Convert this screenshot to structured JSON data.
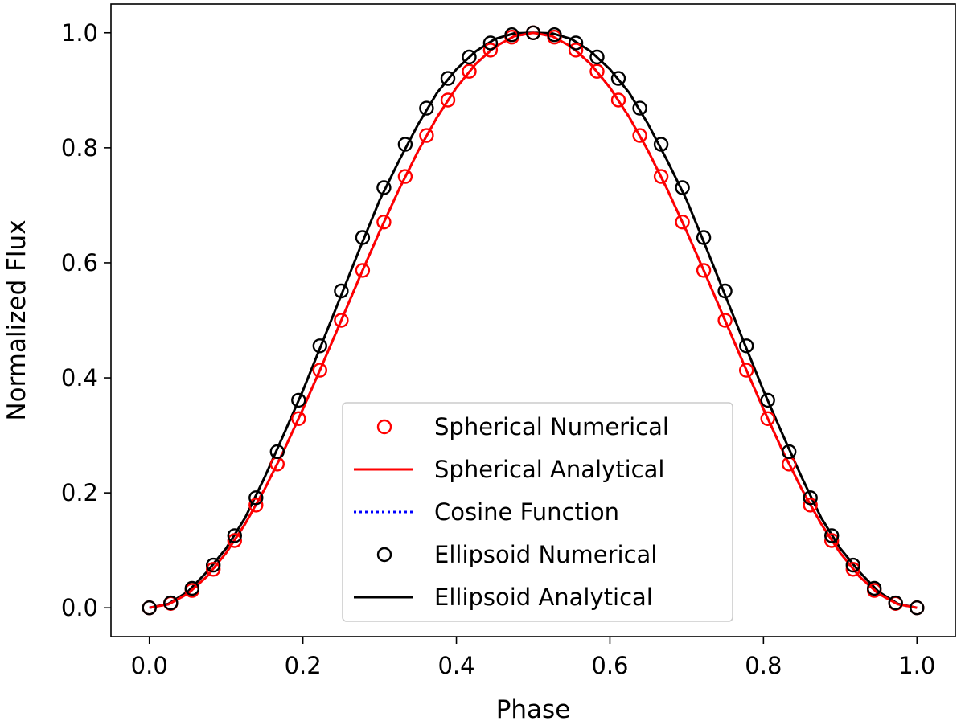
{
  "chart_data": {
    "type": "line",
    "title": "",
    "xlabel": "Phase",
    "ylabel": "Normalized Flux",
    "xlim": [
      -0.05,
      1.05
    ],
    "ylim": [
      -0.05,
      1.05
    ],
    "xticks": [
      0.0,
      0.2,
      0.4,
      0.6,
      0.8,
      1.0
    ],
    "xtick_labels": [
      "0.0",
      "0.2",
      "0.4",
      "0.6",
      "0.8",
      "1.0"
    ],
    "yticks": [
      0.0,
      0.2,
      0.4,
      0.6,
      0.8,
      1.0
    ],
    "ytick_labels": [
      "0.0",
      "0.2",
      "0.4",
      "0.6",
      "0.8",
      "1.0"
    ],
    "grid": false,
    "legend_position": "lower center",
    "point_phases": [
      0.0,
      0.0278,
      0.0556,
      0.0833,
      0.1111,
      0.1389,
      0.1667,
      0.1944,
      0.2222,
      0.25,
      0.2778,
      0.3056,
      0.3333,
      0.3611,
      0.3889,
      0.4167,
      0.4444,
      0.4722,
      0.5,
      0.5278,
      0.5556,
      0.5833,
      0.6111,
      0.6389,
      0.6667,
      0.6944,
      0.7222,
      0.75,
      0.7778,
      0.8056,
      0.8333,
      0.8611,
      0.8889,
      0.9167,
      0.9444,
      0.9722,
      1.0
    ],
    "series": [
      {
        "name": "Spherical Numerical",
        "kind": "markers",
        "color": "#ff0000",
        "y": [
          0.0,
          0.0076,
          0.0302,
          0.067,
          0.117,
          0.1786,
          0.25,
          0.329,
          0.4132,
          0.5,
          0.5868,
          0.671,
          0.75,
          0.8214,
          0.883,
          0.933,
          0.9698,
          0.9924,
          1.0,
          0.9924,
          0.9698,
          0.933,
          0.883,
          0.8214,
          0.75,
          0.671,
          0.5868,
          0.5,
          0.4132,
          0.329,
          0.25,
          0.1786,
          0.117,
          0.067,
          0.0302,
          0.0076,
          0.0
        ]
      },
      {
        "name": "Spherical Analytical",
        "kind": "line",
        "color": "#ff0000",
        "x": [
          0.0,
          0.025,
          0.05,
          0.075,
          0.1,
          0.125,
          0.15,
          0.175,
          0.2,
          0.225,
          0.25,
          0.275,
          0.3,
          0.325,
          0.35,
          0.375,
          0.4,
          0.425,
          0.45,
          0.475,
          0.5,
          0.525,
          0.55,
          0.575,
          0.6,
          0.625,
          0.65,
          0.675,
          0.7,
          0.725,
          0.75,
          0.775,
          0.8,
          0.825,
          0.85,
          0.875,
          0.9,
          0.925,
          0.95,
          0.975,
          1.0
        ],
        "y": [
          0.0,
          0.0062,
          0.0245,
          0.0545,
          0.0955,
          0.1464,
          0.2061,
          0.273,
          0.3455,
          0.4218,
          0.5,
          0.5782,
          0.6545,
          0.727,
          0.7939,
          0.8536,
          0.9045,
          0.9455,
          0.9755,
          0.9938,
          1.0,
          0.9938,
          0.9755,
          0.9455,
          0.9045,
          0.8536,
          0.7939,
          0.727,
          0.6545,
          0.5782,
          0.5,
          0.4218,
          0.3455,
          0.273,
          0.2061,
          0.1464,
          0.0955,
          0.0545,
          0.0245,
          0.0062,
          0.0
        ]
      },
      {
        "name": "Cosine Function",
        "kind": "dotted-line",
        "color": "#0000ff",
        "x": [
          0.0,
          0.025,
          0.05,
          0.075,
          0.1,
          0.125,
          0.15,
          0.175,
          0.2,
          0.225,
          0.25,
          0.275,
          0.3,
          0.325,
          0.35,
          0.375,
          0.4,
          0.425,
          0.45,
          0.475,
          0.5,
          0.525,
          0.55,
          0.575,
          0.6,
          0.625,
          0.65,
          0.675,
          0.7,
          0.725,
          0.75,
          0.775,
          0.8,
          0.825,
          0.85,
          0.875,
          0.9,
          0.925,
          0.95,
          0.975,
          1.0
        ],
        "y": [
          0.0,
          0.0062,
          0.0245,
          0.0545,
          0.0955,
          0.1464,
          0.2061,
          0.273,
          0.3455,
          0.4218,
          0.5,
          0.5782,
          0.6545,
          0.727,
          0.7939,
          0.8536,
          0.9045,
          0.9455,
          0.9755,
          0.9938,
          1.0,
          0.9938,
          0.9755,
          0.9455,
          0.9045,
          0.8536,
          0.7939,
          0.727,
          0.6545,
          0.5782,
          0.5,
          0.4218,
          0.3455,
          0.273,
          0.2061,
          0.1464,
          0.0955,
          0.0545,
          0.0245,
          0.0062,
          0.0
        ]
      },
      {
        "name": "Ellipsoid Numerical",
        "kind": "markers",
        "color": "#000000",
        "y": [
          0.0,
          0.0085,
          0.0338,
          0.0743,
          0.1255,
          0.1914,
          0.2716,
          0.361,
          0.4556,
          0.551,
          0.644,
          0.7306,
          0.8059,
          0.8689,
          0.9206,
          0.9578,
          0.9822,
          0.9966,
          1.0,
          0.9966,
          0.9822,
          0.9578,
          0.9206,
          0.8689,
          0.8059,
          0.7306,
          0.644,
          0.551,
          0.4556,
          0.361,
          0.2716,
          0.1914,
          0.1255,
          0.0743,
          0.0338,
          0.0085,
          0.0
        ]
      },
      {
        "name": "Ellipsoid Analytical",
        "kind": "line",
        "color": "#000000",
        "x": [
          0.0,
          0.025,
          0.05,
          0.075,
          0.1,
          0.125,
          0.15,
          0.175,
          0.2,
          0.225,
          0.25,
          0.275,
          0.3,
          0.325,
          0.35,
          0.375,
          0.4,
          0.425,
          0.45,
          0.475,
          0.5,
          0.525,
          0.55,
          0.575,
          0.6,
          0.625,
          0.65,
          0.675,
          0.7,
          0.725,
          0.75,
          0.775,
          0.8,
          0.825,
          0.85,
          0.875,
          0.9,
          0.925,
          0.95,
          0.975,
          1.0
        ],
        "y": [
          0.0,
          0.007,
          0.028,
          0.0625,
          0.1035,
          0.157,
          0.2265,
          0.3015,
          0.3775,
          0.4605,
          0.544,
          0.6275,
          0.709,
          0.777,
          0.8405,
          0.896,
          0.9365,
          0.9675,
          0.989,
          0.999,
          1.0,
          0.999,
          0.989,
          0.9675,
          0.9365,
          0.896,
          0.8405,
          0.777,
          0.709,
          0.6275,
          0.544,
          0.4605,
          0.3775,
          0.3015,
          0.2265,
          0.157,
          0.1035,
          0.0625,
          0.028,
          0.007,
          0.0
        ]
      }
    ]
  }
}
